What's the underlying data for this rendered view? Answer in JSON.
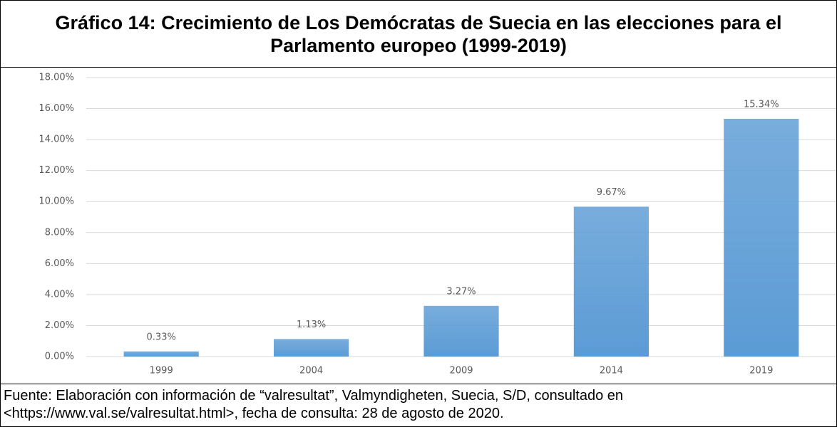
{
  "chart_data": {
    "type": "bar",
    "title": "Gráfico 14: Crecimiento de Los Demócratas de Suecia en las elecciones para el Parlamento europeo (1999-2019)",
    "categories": [
      "1999",
      "2004",
      "2009",
      "2014",
      "2019"
    ],
    "values": [
      0.33,
      1.13,
      3.27,
      9.67,
      15.34
    ],
    "value_labels": [
      "0.33%",
      "1.13%",
      "3.27%",
      "9.67%",
      "15.34%"
    ],
    "color": "#5b9bd5",
    "ylim": [
      0,
      18
    ],
    "yticks": [
      {
        "value": 0,
        "label": "0.00%"
      },
      {
        "value": 2,
        "label": "2.00%"
      },
      {
        "value": 4,
        "label": "4.00%"
      },
      {
        "value": 6,
        "label": "6.00%"
      },
      {
        "value": 8,
        "label": "8.00%"
      },
      {
        "value": 10,
        "label": "10.00%"
      },
      {
        "value": 12,
        "label": "12.00%"
      },
      {
        "value": 14,
        "label": "14.00%"
      },
      {
        "value": 16,
        "label": "16.00%"
      },
      {
        "value": 18,
        "label": "18.00%"
      }
    ],
    "grid": true,
    "source": [
      "Fuente: Elaboración con información de “valresultat”, Valmyndigheten, Suecia, S/D, consultado en",
      "<https://www.val.se/valresultat.html>, fecha de consulta: 28 de agosto de 2020."
    ]
  }
}
